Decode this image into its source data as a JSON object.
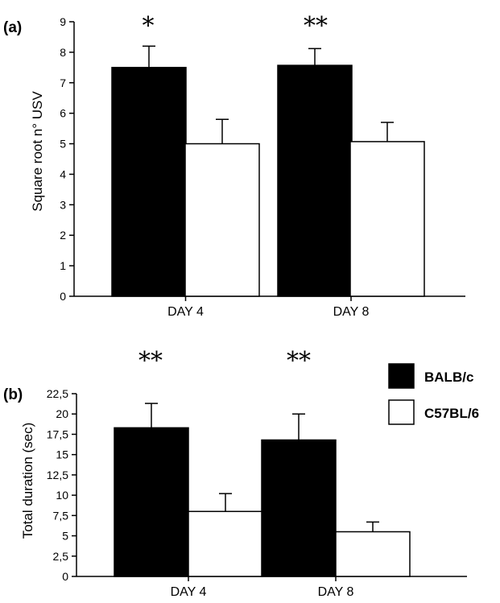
{
  "chart_data": [
    {
      "type": "bar",
      "panel_label": "(a)",
      "ylabel": "Square root n° USV",
      "ylim": [
        0,
        9
      ],
      "yticks": [
        "0",
        "1",
        "2",
        "3",
        "4",
        "5",
        "6",
        "7",
        "8",
        "9"
      ],
      "categories": [
        "DAY 4",
        "DAY 8"
      ],
      "significance": [
        "*",
        "**"
      ],
      "series": [
        {
          "name": "BALB/c",
          "color": "#000000",
          "values": [
            7.5,
            7.57
          ],
          "errors": [
            0.7,
            0.55
          ]
        },
        {
          "name": "C57BL/6",
          "color": "#ffffff",
          "values": [
            5.0,
            5.07
          ],
          "errors": [
            0.8,
            0.63
          ]
        }
      ]
    },
    {
      "type": "bar",
      "panel_label": "(b)",
      "ylabel": "Total duration (sec)",
      "ylim": [
        0,
        22.5
      ],
      "yticks": [
        "0",
        "2,5",
        "5",
        "7,5",
        "10",
        "12,5",
        "15",
        "17,5",
        "20",
        "22,5"
      ],
      "categories": [
        "DAY 4",
        "DAY 8"
      ],
      "significance": [
        "**",
        "**"
      ],
      "series": [
        {
          "name": "BALB/c",
          "color": "#000000",
          "values": [
            18.3,
            16.8
          ],
          "errors": [
            3.0,
            3.2
          ]
        },
        {
          "name": "C57BL/6",
          "color": "#ffffff",
          "values": [
            8.0,
            5.5
          ],
          "errors": [
            2.2,
            1.2
          ]
        }
      ]
    }
  ],
  "legend": {
    "placement": "right",
    "items": [
      {
        "label": "BALB/c",
        "color": "#000000"
      },
      {
        "label": "C57BL/6",
        "color": "#ffffff"
      }
    ]
  }
}
